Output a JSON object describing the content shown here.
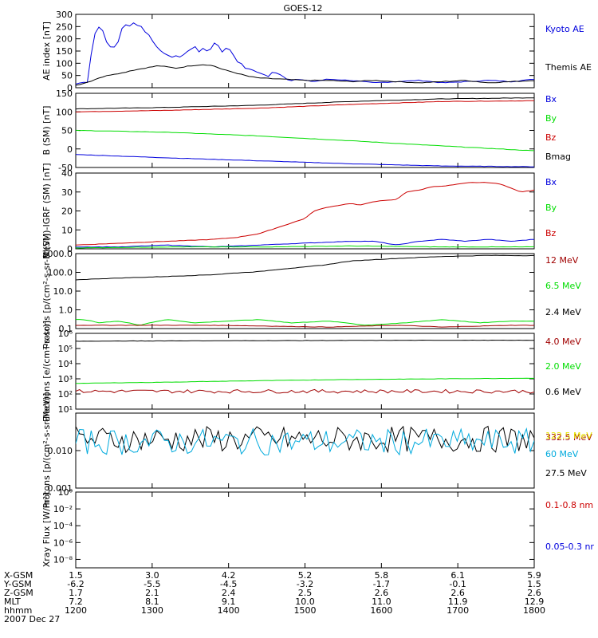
{
  "title": "GOES-12",
  "colors": {
    "black": "#000000",
    "blue": "#0000dd",
    "green": "#00dd00",
    "red": "#cc0000",
    "darkred": "#a00000",
    "cyan": "#00aadd",
    "yellow": "#e6e600"
  },
  "chart_data": [
    {
      "type": "line",
      "ylabel": "AE index [nT]",
      "ylim": [
        0,
        300
      ],
      "scale": "linear",
      "yticks": [
        0,
        50,
        100,
        150,
        200,
        250,
        300
      ],
      "yticklabels": [
        "0",
        "50",
        "100",
        "150",
        "200",
        "250",
        "300"
      ],
      "legend": [
        {
          "label": "Kyoto AE",
          "color": "#0000dd"
        },
        {
          "label": "Themis AE",
          "color": "#000000"
        }
      ],
      "series": [
        {
          "name": "Kyoto AE",
          "color": "#0000dd",
          "x": [
            0,
            0.01,
            0.02,
            0.03,
            0.035,
            0.04,
            0.045,
            0.05,
            0.06,
            0.07,
            0.08,
            0.09,
            0.1,
            0.11,
            0.12,
            0.125,
            0.13,
            0.14,
            0.15,
            0.16,
            0.17,
            0.18,
            0.19,
            0.2,
            0.21,
            0.22,
            0.23,
            0.24,
            0.25,
            0.26,
            0.27,
            0.28,
            0.29,
            0.3,
            0.31,
            0.32,
            0.33,
            0.34,
            0.35,
            0.36,
            0.37,
            0.38,
            0.39,
            0.4,
            0.41,
            0.42,
            0.43,
            0.44,
            0.45,
            0.46,
            0.47,
            0.48,
            0.5,
            0.52,
            0.55,
            0.6,
            0.65,
            0.7,
            0.75,
            0.8,
            0.85,
            0.9,
            0.95,
            1.0
          ],
          "y": [
            15,
            20,
            25,
            20,
            180,
            210,
            240,
            250,
            230,
            170,
            165,
            170,
            240,
            260,
            250,
            270,
            250,
            260,
            230,
            215,
            185,
            160,
            140,
            135,
            125,
            130,
            125,
            145,
            155,
            170,
            145,
            165,
            140,
            185,
            175,
            145,
            165,
            150,
            110,
            100,
            80,
            75,
            70,
            60,
            55,
            45,
            65,
            60,
            50,
            35,
            30,
            35,
            30,
            25,
            35,
            30,
            20,
            25,
            30,
            20,
            25,
            30,
            25,
            35
          ]
        },
        {
          "name": "Themis AE",
          "color": "#000000",
          "x": [
            0,
            0.03,
            0.05,
            0.08,
            0.1,
            0.12,
            0.15,
            0.18,
            0.2,
            0.22,
            0.25,
            0.28,
            0.3,
            0.32,
            0.35,
            0.38,
            0.4,
            0.45,
            0.5,
            0.55,
            0.6,
            0.65,
            0.7,
            0.75,
            0.8,
            0.85,
            0.9,
            0.95,
            1.0
          ],
          "y": [
            10,
            25,
            40,
            55,
            60,
            70,
            80,
            90,
            85,
            80,
            90,
            95,
            90,
            75,
            60,
            45,
            40,
            35,
            30,
            30,
            25,
            30,
            25,
            20,
            25,
            30,
            20,
            25,
            30
          ]
        }
      ]
    },
    {
      "type": "line",
      "ylabel": "B (SM) [nT]",
      "ylim": [
        -50,
        150
      ],
      "scale": "linear",
      "yticks": [
        -50,
        0,
        50,
        100,
        150
      ],
      "yticklabels": [
        "-50",
        "0",
        "50",
        "100",
        "150"
      ],
      "legend": [
        {
          "label": "Bx",
          "color": "#0000dd"
        },
        {
          "label": "By",
          "color": "#00dd00"
        },
        {
          "label": "Bz",
          "color": "#cc0000"
        },
        {
          "label": "Bmag",
          "color": "#000000"
        }
      ],
      "series": [
        {
          "name": "Bmag",
          "color": "#000000",
          "x": [
            0,
            0.2,
            0.4,
            0.6,
            0.8,
            1.0
          ],
          "y": [
            108,
            112,
            118,
            128,
            135,
            138
          ]
        },
        {
          "name": "Bz",
          "color": "#cc0000",
          "x": [
            0,
            0.2,
            0.4,
            0.6,
            0.8,
            1.0
          ],
          "y": [
            100,
            104,
            110,
            120,
            128,
            130
          ]
        },
        {
          "name": "By",
          "color": "#00dd00",
          "x": [
            0,
            0.2,
            0.4,
            0.6,
            0.8,
            1.0
          ],
          "y": [
            50,
            45,
            35,
            22,
            8,
            -5
          ]
        },
        {
          "name": "Bx",
          "color": "#0000dd",
          "x": [
            0,
            0.2,
            0.4,
            0.6,
            0.8,
            1.0
          ],
          "y": [
            -15,
            -24,
            -32,
            -40,
            -46,
            -48
          ]
        }
      ]
    },
    {
      "type": "line",
      "ylabel": "B (SM)-IGRF (SM) [nT]",
      "ylim": [
        0,
        40
      ],
      "scale": "linear",
      "yticks": [
        0,
        10,
        20,
        30,
        40
      ],
      "yticklabels": [
        "0",
        "10",
        "20",
        "30",
        "40"
      ],
      "legend": [
        {
          "label": "Bx",
          "color": "#0000dd"
        },
        {
          "label": "By",
          "color": "#00dd00"
        },
        {
          "label": "Bz",
          "color": "#cc0000"
        }
      ],
      "series": [
        {
          "name": "Bz",
          "color": "#cc0000",
          "x": [
            0,
            0.1,
            0.2,
            0.3,
            0.35,
            0.4,
            0.45,
            0.5,
            0.52,
            0.55,
            0.6,
            0.62,
            0.65,
            0.7,
            0.72,
            0.75,
            0.78,
            0.8,
            0.83,
            0.86,
            0.9,
            0.93,
            0.95,
            0.97,
            1.0
          ],
          "y": [
            2,
            3,
            4,
            5,
            6,
            8,
            12,
            16,
            20,
            22,
            24,
            23,
            25,
            26,
            30,
            31,
            33,
            33,
            34,
            35,
            35,
            34,
            32,
            30,
            31
          ]
        },
        {
          "name": "Bx",
          "color": "#0000dd",
          "x": [
            0,
            0.1,
            0.2,
            0.3,
            0.4,
            0.5,
            0.6,
            0.65,
            0.7,
            0.75,
            0.8,
            0.85,
            0.9,
            0.95,
            1.0
          ],
          "y": [
            1,
            1,
            2,
            1,
            2,
            3,
            4,
            4,
            2,
            4,
            5,
            4,
            5,
            4,
            5
          ]
        },
        {
          "name": "By",
          "color": "#00dd00",
          "x": [
            0,
            0.2,
            0.4,
            0.6,
            0.8,
            1.0
          ],
          "y": [
            0.5,
            1,
            1,
            1.5,
            1,
            1
          ]
        }
      ]
    },
    {
      "type": "line",
      "ylabel": "Protons [p/(cm²-s-sr-MeV)]",
      "ylim": [
        0.1,
        1000
      ],
      "scale": "log",
      "yticks": [
        0.1,
        1,
        10,
        100,
        1000
      ],
      "yticklabels": [
        "0.1",
        "1.0",
        "10.0",
        "100.0",
        "1000.0"
      ],
      "legend": [
        {
          "label": "12 MeV",
          "color": "#a00000"
        },
        {
          "label": "6.5 MeV",
          "color": "#00dd00"
        },
        {
          "label": "2.4 MeV",
          "color": "#000000"
        }
      ],
      "series": [
        {
          "name": "2.4 MeV",
          "color": "#000000",
          "x": [
            0,
            0.1,
            0.2,
            0.3,
            0.4,
            0.5,
            0.55,
            0.6,
            0.7,
            0.8,
            0.9,
            1.0
          ],
          "y": [
            40,
            50,
            60,
            75,
            110,
            190,
            260,
            400,
            550,
            700,
            800,
            780
          ]
        },
        {
          "name": "6.5 MeV",
          "color": "#00dd00",
          "x": [
            0.02,
            0.05,
            0.09,
            0.14,
            0.2,
            0.26,
            0.33,
            0.4,
            0.47,
            0.55,
            0.63,
            0.72,
            0.8,
            0.88,
            0.95
          ],
          "y": [
            0.3,
            0.2,
            0.25,
            0.15,
            0.3,
            0.2,
            0.25,
            0.3,
            0.2,
            0.25,
            0.15,
            0.2,
            0.3,
            0.2,
            0.25
          ]
        },
        {
          "name": "12 MeV",
          "color": "#a00000",
          "x": [
            0.3,
            0.55,
            0.7,
            0.8,
            0.95
          ],
          "y": [
            0.15,
            0.12,
            0.15,
            0.12,
            0.15
          ]
        }
      ]
    },
    {
      "type": "line",
      "ylabel": "Electrons [e/(cm²-s-sr)]",
      "ylim": [
        10,
        1000000
      ],
      "scale": "log",
      "yticks": [
        10,
        100,
        1000,
        10000,
        100000,
        1000000
      ],
      "yticklabels": [
        "10¹",
        "10²",
        "10³",
        "10⁴",
        "10⁵",
        "10⁶"
      ],
      "legend": [
        {
          "label": "4.0 MeV",
          "color": "#a00000"
        },
        {
          "label": "2.0 MeV",
          "color": "#00dd00"
        },
        {
          "label": "0.6 MeV",
          "color": "#000000"
        }
      ],
      "series": [
        {
          "name": "0.6 MeV",
          "color": "#000000",
          "x": [
            0,
            0.2,
            0.4,
            0.6,
            0.8,
            1.0
          ],
          "y": [
            300000,
            320000,
            330000,
            340000,
            350000,
            350000
          ]
        },
        {
          "name": "2.0 MeV",
          "color": "#00dd00",
          "x": [
            0,
            0.2,
            0.4,
            0.6,
            0.8,
            1.0
          ],
          "y": [
            500,
            600,
            750,
            900,
            1000,
            1100
          ]
        },
        {
          "name": "4.0 MeV",
          "color": "#a00000",
          "x": [
            0,
            0.5,
            1.0
          ],
          "y": [
            150,
            150,
            150
          ]
        }
      ]
    },
    {
      "type": "line",
      "ylabel": "Protons [p/(cm²-s-sr-MeV)]",
      "ylim": [
        0.001,
        0.1
      ],
      "scale": "log",
      "yticks": [
        0.001,
        0.01
      ],
      "yticklabels": [
        "0.001",
        "0.010"
      ],
      "legend": [
        {
          "label": "332.5 MeV",
          "color": "#a00000"
        },
        {
          "label": "122.5 MeV",
          "color": "#e6e600"
        },
        {
          "label": "60 MeV",
          "color": "#00aadd"
        },
        {
          "label": "27.5 MeV",
          "color": "#000000"
        }
      ],
      "series": [
        {
          "name": "27.5 MeV",
          "color": "#000000",
          "x": [
            0,
            1.0
          ],
          "y": [
            0.02,
            0.02
          ]
        },
        {
          "name": "60 MeV",
          "color": "#00aadd",
          "x": [
            0,
            1.0
          ],
          "y": [
            0.017,
            0.017
          ]
        }
      ]
    },
    {
      "type": "line",
      "ylabel": "Xray Flux [W/m²]",
      "ylim": [
        1e-09,
        1
      ],
      "scale": "log",
      "yticks": [
        1e-08,
        1e-06,
        0.0001,
        0.01,
        1
      ],
      "yticklabels": [
        "10⁻⁸",
        "10⁻⁶",
        "10⁻⁴",
        "10⁻²",
        "10⁰"
      ],
      "legend": [
        {
          "label": "0.1-0.8 nm",
          "color": "#cc0000"
        },
        {
          "label": "0.05-0.3 nr",
          "color": "#0000dd"
        }
      ],
      "series": []
    }
  ],
  "xaxis": {
    "rows": [
      {
        "name": "X-GSM",
        "values": [
          "1.5",
          "3.0",
          "4.2",
          "5.2",
          "5.8",
          "6.1",
          "5.9"
        ]
      },
      {
        "name": "Y-GSM",
        "values": [
          "-6.2",
          "-5.5",
          "-4.5",
          "-3.2",
          "-1.7",
          "-0.1",
          "1.5"
        ]
      },
      {
        "name": "Z-GSM",
        "values": [
          "1.7",
          "2.1",
          "2.4",
          "2.5",
          "2.6",
          "2.6",
          "2.6"
        ]
      },
      {
        "name": "MLT",
        "values": [
          "7.2",
          "8.1",
          "9.1",
          "10.0",
          "11.0",
          "11.9",
          "12.9"
        ]
      },
      {
        "name": "hhmm",
        "values": [
          "1200",
          "1300",
          "1400",
          "1500",
          "1600",
          "1700",
          "1800"
        ]
      }
    ],
    "date": "2007 Dec 27"
  }
}
